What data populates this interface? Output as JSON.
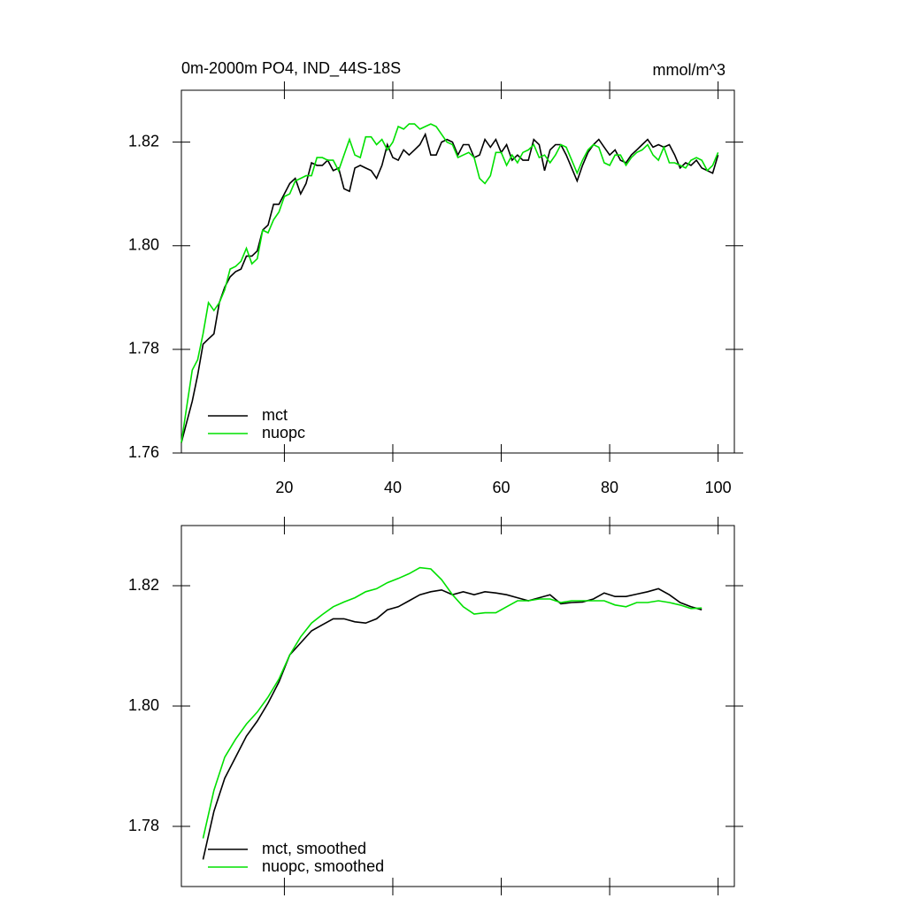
{
  "chart_data": [
    {
      "type": "line",
      "title": "0m-2000m PO4, IND_44S-18S",
      "units": "mmol/m^3",
      "xlim": [
        1,
        103
      ],
      "ylim": [
        1.76,
        1.83
      ],
      "xticks": [
        20,
        40,
        60,
        80,
        100
      ],
      "yticks": [
        1.76,
        1.78,
        {
          "value": 1.8,
          "label": "1.80"
        },
        1.82
      ],
      "legend": "lower left",
      "x": [
        1,
        2,
        3,
        4,
        5,
        6,
        7,
        8,
        9,
        10,
        11,
        12,
        13,
        14,
        15,
        16,
        17,
        18,
        19,
        20,
        21,
        22,
        23,
        24,
        25,
        26,
        27,
        28,
        29,
        30,
        31,
        32,
        33,
        34,
        35,
        36,
        37,
        38,
        39,
        40,
        41,
        42,
        43,
        44,
        45,
        46,
        47,
        48,
        49,
        50,
        51,
        52,
        53,
        54,
        55,
        56,
        57,
        58,
        59,
        60,
        61,
        62,
        63,
        64,
        65,
        66,
        67,
        68,
        69,
        70,
        71,
        72,
        73,
        74,
        75,
        76,
        77,
        78,
        79,
        80,
        81,
        82,
        83,
        84,
        85,
        86,
        87,
        88,
        89,
        90,
        91,
        92,
        93,
        94,
        95,
        96,
        97,
        98,
        99,
        100
      ],
      "series": [
        {
          "name": "mct",
          "color": "#000000",
          "values": [
            1.762,
            1.766,
            1.77,
            1.775,
            1.781,
            1.782,
            1.783,
            1.789,
            1.792,
            1.794,
            1.795,
            1.7955,
            1.798,
            1.798,
            1.799,
            1.803,
            1.804,
            1.808,
            1.808,
            1.81,
            1.812,
            1.813,
            1.81,
            1.812,
            1.816,
            1.8155,
            1.8155,
            1.8165,
            1.8145,
            1.815,
            1.811,
            1.8105,
            1.815,
            1.8155,
            1.815,
            1.8145,
            1.813,
            1.8155,
            1.8195,
            1.817,
            1.8165,
            1.8185,
            1.8175,
            1.8185,
            1.8195,
            1.8215,
            1.8175,
            1.8175,
            1.82,
            1.8205,
            1.82,
            1.8175,
            1.8195,
            1.8195,
            1.817,
            1.8175,
            1.8205,
            1.819,
            1.8205,
            1.818,
            1.8195,
            1.8165,
            1.8175,
            1.8165,
            1.8165,
            1.8205,
            1.8195,
            1.8145,
            1.8185,
            1.8195,
            1.8195,
            1.8175,
            1.815,
            1.8125,
            1.8155,
            1.818,
            1.8195,
            1.8205,
            1.819,
            1.8175,
            1.8185,
            1.8165,
            1.816,
            1.8175,
            1.8185,
            1.8195,
            1.8205,
            1.819,
            1.8195,
            1.819,
            1.8195,
            1.8175,
            1.815,
            1.816,
            1.8155,
            1.8165,
            1.815,
            1.8145,
            1.814,
            1.8175
          ]
        },
        {
          "name": "nuopc",
          "color": "#00e000",
          "values": [
            1.762,
            1.769,
            1.776,
            1.778,
            1.783,
            1.789,
            1.7875,
            1.789,
            1.7915,
            1.7955,
            1.796,
            1.797,
            1.7995,
            1.7965,
            1.7975,
            1.803,
            1.8025,
            1.805,
            1.8065,
            1.8095,
            1.81,
            1.8125,
            1.813,
            1.8135,
            1.8135,
            1.817,
            1.817,
            1.8165,
            1.8165,
            1.8145,
            1.8175,
            1.8205,
            1.8175,
            1.817,
            1.821,
            1.821,
            1.8195,
            1.8205,
            1.8185,
            1.82,
            1.823,
            1.8225,
            1.8235,
            1.8235,
            1.8225,
            1.823,
            1.8235,
            1.823,
            1.8215,
            1.82,
            1.8195,
            1.817,
            1.8175,
            1.818,
            1.817,
            1.813,
            1.812,
            1.8135,
            1.818,
            1.818,
            1.8155,
            1.8175,
            1.816,
            1.818,
            1.8185,
            1.8195,
            1.817,
            1.8175,
            1.816,
            1.8175,
            1.8195,
            1.819,
            1.8165,
            1.814,
            1.8165,
            1.8185,
            1.8195,
            1.819,
            1.816,
            1.8155,
            1.8175,
            1.8175,
            1.8155,
            1.817,
            1.818,
            1.8185,
            1.8195,
            1.8175,
            1.8165,
            1.819,
            1.816,
            1.816,
            1.8155,
            1.815,
            1.8165,
            1.817,
            1.8165,
            1.8145,
            1.8155,
            1.818
          ]
        }
      ]
    },
    {
      "type": "line",
      "xlim": [
        1,
        103
      ],
      "ylim": [
        1.77,
        1.83
      ],
      "xticks": [
        20,
        40,
        60,
        80,
        100
      ],
      "yticks": [
        1.78,
        {
          "value": 1.8,
          "label": "1.80"
        },
        1.82
      ],
      "legend": "lower left",
      "x": [
        5,
        7,
        9,
        11,
        13,
        15,
        17,
        19,
        21,
        23,
        25,
        27,
        29,
        31,
        33,
        35,
        37,
        39,
        41,
        43,
        45,
        47,
        49,
        51,
        53,
        55,
        57,
        59,
        61,
        63,
        65,
        67,
        69,
        71,
        73,
        75,
        77,
        79,
        81,
        83,
        85,
        87,
        89,
        91,
        93,
        95,
        97
      ],
      "series": [
        {
          "name": "mct, smoothed",
          "color": "#000000",
          "values": [
            1.7745,
            1.7825,
            1.788,
            1.7915,
            1.795,
            1.7975,
            1.8005,
            1.804,
            1.8085,
            1.8105,
            1.8125,
            1.8135,
            1.8145,
            1.8145,
            1.814,
            1.8138,
            1.8145,
            1.816,
            1.8165,
            1.8175,
            1.8185,
            1.819,
            1.8193,
            1.8185,
            1.819,
            1.8185,
            1.819,
            1.8188,
            1.8185,
            1.818,
            1.8175,
            1.818,
            1.8185,
            1.817,
            1.8172,
            1.8173,
            1.8178,
            1.8188,
            1.8182,
            1.8182,
            1.8186,
            1.819,
            1.8195,
            1.8185,
            1.8172,
            1.8165,
            1.816
          ]
        },
        {
          "name": "nuopc, smoothed",
          "color": "#00e000",
          "values": [
            1.778,
            1.786,
            1.7915,
            1.7945,
            1.797,
            1.799,
            1.8015,
            1.8045,
            1.8085,
            1.8115,
            1.8138,
            1.8152,
            1.8165,
            1.8173,
            1.818,
            1.819,
            1.8195,
            1.8205,
            1.8212,
            1.822,
            1.823,
            1.8228,
            1.821,
            1.8185,
            1.8165,
            1.8153,
            1.8155,
            1.8155,
            1.8165,
            1.8175,
            1.8175,
            1.8178,
            1.8178,
            1.8172,
            1.8175,
            1.8175,
            1.8175,
            1.8175,
            1.8168,
            1.8165,
            1.8172,
            1.8172,
            1.8175,
            1.8172,
            1.8168,
            1.8162,
            1.8163
          ]
        }
      ]
    }
  ]
}
